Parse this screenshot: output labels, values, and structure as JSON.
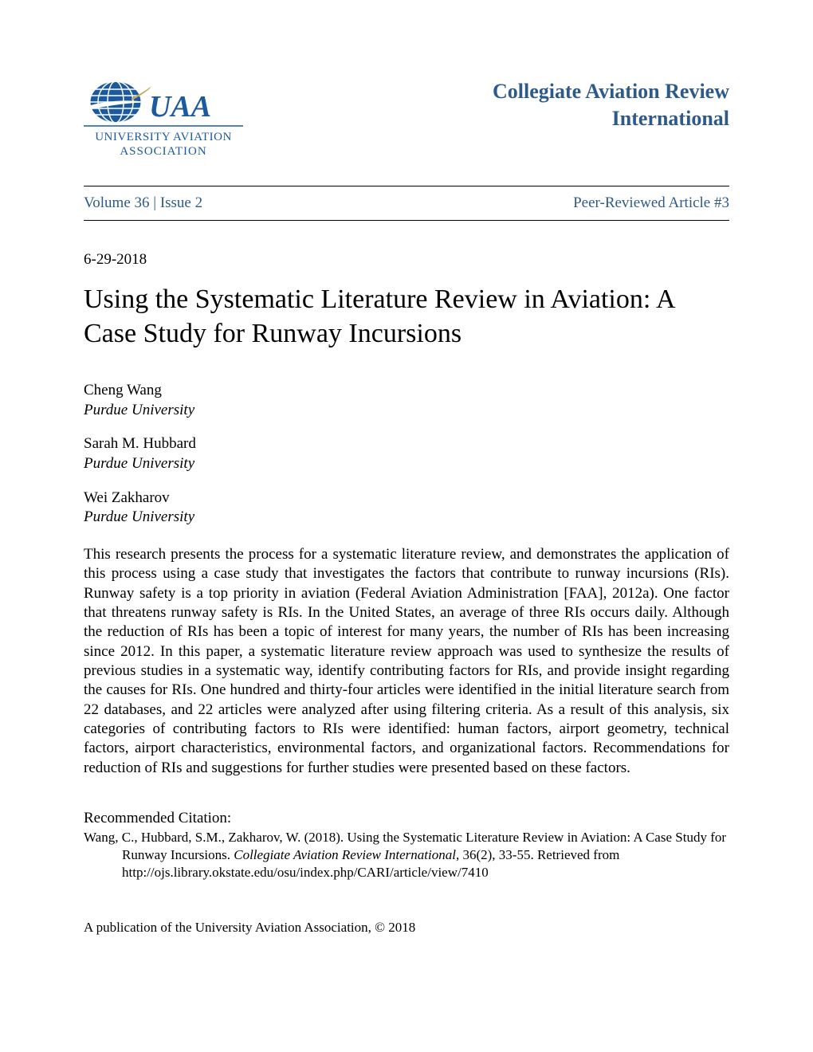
{
  "logo": {
    "name_line1": "UAA",
    "name_line2": "UNIVERSITY AVIATION",
    "name_line3": "ASSOCIATION",
    "primary_color": "#1b5a9e",
    "accent_color": "#a8c1e0"
  },
  "journal": {
    "title_line1": "Collegiate Aviation Review",
    "title_line2": "International",
    "title_color": "#2e5a8a"
  },
  "issue": {
    "volume_label": "Volume 36 | Issue 2",
    "article_label": "Peer-Reviewed Article #3",
    "text_color": "#2e5a8a"
  },
  "date": "6-29-2018",
  "title": "Using the Systematic Literature Review in Aviation: A Case Study for Runway Incursions",
  "authors": [
    {
      "name": "Cheng Wang",
      "affiliation": "Purdue University"
    },
    {
      "name": "Sarah M. Hubbard",
      "affiliation": "Purdue University"
    },
    {
      "name": "Wei Zakharov",
      "affiliation": "Purdue University"
    }
  ],
  "abstract": "This research presents the process for a systematic literature review, and demonstrates the application of this process using a case study that investigates the factors that contribute to runway incursions (RIs). Runway safety is a top priority in aviation (Federal Aviation Administration [FAA], 2012a). One factor that threatens runway safety is RIs. In the United States, an average of three RIs occurs daily. Although the reduction of RIs has been a topic of interest for many years, the number of RIs has been increasing since 2012. In this paper, a systematic literature review approach was used to synthesize the results of previous studies in a systematic way, identify contributing factors for RIs, and provide insight regarding the causes for RIs. One hundred and thirty-four articles were identified in the initial literature search from 22 databases, and 22 articles were analyzed after using filtering criteria. As a result of this analysis, six categories of contributing factors to RIs were identified: human factors, airport geometry, technical factors, airport characteristics, environmental factors, and organizational factors. Recommendations for reduction of RIs and suggestions for further studies were presented based on these factors.",
  "citation": {
    "label": "Recommended Citation:",
    "authors": "Wang, C., Hubbard, S.M., Zakharov, W. (2018). Using the Systematic Literature Review in Aviation: A Case Study for Runway Incursions. ",
    "journal_italic": "Collegiate Aviation Review International, ",
    "rest": "36(2), 33-55. Retrieved from http://ojs.library.okstate.edu/osu/index.php/CARI/article/view/7410"
  },
  "footer": "A publication of the University Aviation Association, © 2018"
}
